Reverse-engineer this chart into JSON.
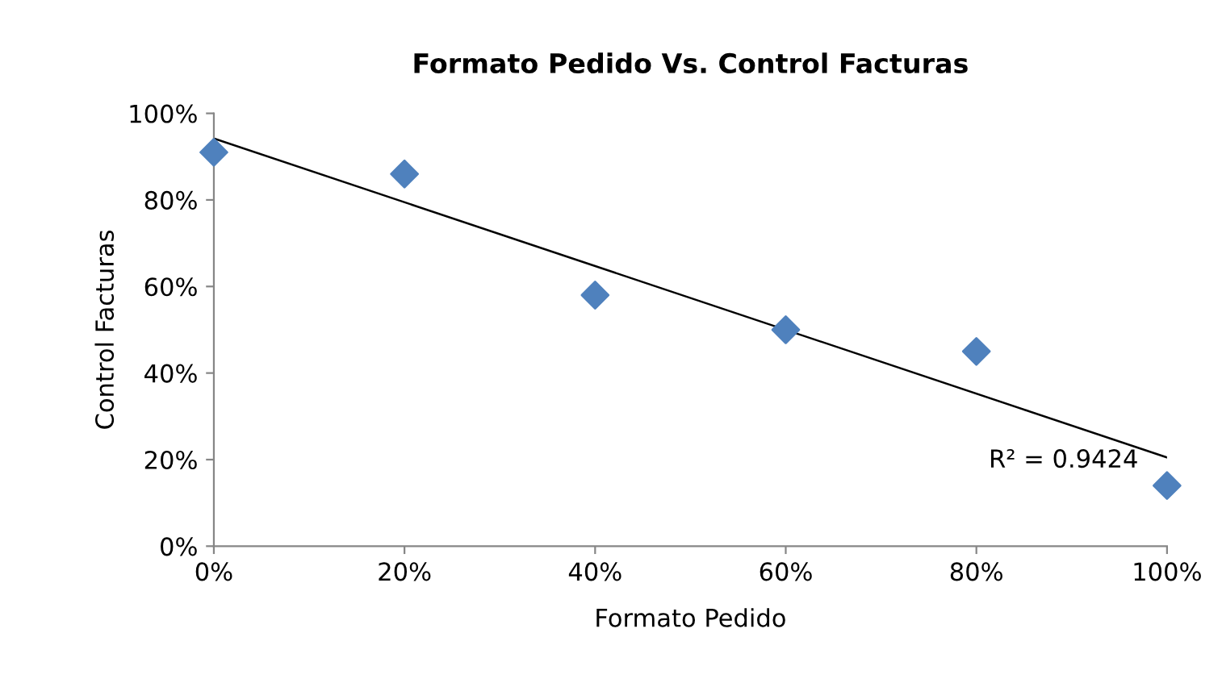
{
  "chart_data": {
    "type": "scatter",
    "title": "Formato Pedido Vs. Control Facturas",
    "xlabel": "Formato Pedido",
    "ylabel": "Control Facturas",
    "x": [
      0,
      20,
      40,
      60,
      80,
      100
    ],
    "series": [
      {
        "color": "#4f81bd",
        "values": [
          91,
          86,
          58,
          50,
          45,
          14
        ],
        "marker": "diamond"
      },
      {
        "type": "line",
        "color": "#000000",
        "x": [
          0,
          100
        ],
        "values": [
          94.2,
          20.5
        ],
        "marker": "none"
      }
    ],
    "xlim": [
      0,
      100
    ],
    "ylim": [
      0,
      100
    ],
    "xticks": [
      {
        "value": 0,
        "label": "0%"
      },
      {
        "value": 20,
        "label": "20%"
      },
      {
        "value": 40,
        "label": "40%"
      },
      {
        "value": 60,
        "label": "60%"
      },
      {
        "value": 80,
        "label": "80%"
      },
      {
        "value": 100,
        "label": "100%"
      }
    ],
    "yticks": [
      {
        "value": 0,
        "label": "0%"
      },
      {
        "value": 20,
        "label": "20%"
      },
      {
        "value": 40,
        "label": "40%"
      },
      {
        "value": 60,
        "label": "60%"
      },
      {
        "value": 80,
        "label": "80%"
      },
      {
        "value": 100,
        "label": "100%"
      }
    ],
    "annotations": [
      "R² = 0.9424"
    ],
    "grid": false,
    "legend": false
  }
}
